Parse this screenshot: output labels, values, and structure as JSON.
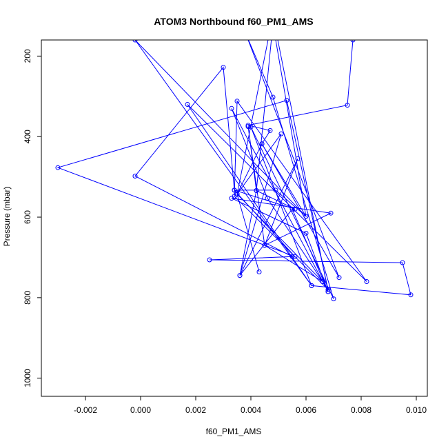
{
  "chart_data": {
    "type": "line",
    "title": "ATOM3 Northbound f60_PM1_AMS",
    "xlabel": "f60_PM1_AMS",
    "ylabel": "Pressure (mbar)",
    "xlim": [
      -0.0036,
      0.0104
    ],
    "ylim": [
      1045,
      160
    ],
    "y_reversed": true,
    "xticks": [
      -0.002,
      0.0,
      0.002,
      0.004,
      0.006,
      0.008,
      0.01
    ],
    "xtick_labels": [
      "-0.002",
      "0.000",
      "0.002",
      "0.004",
      "0.006",
      "0.008",
      "0.010"
    ],
    "yticks": [
      200,
      400,
      600,
      800,
      1000
    ],
    "ytick_labels": [
      "200",
      "400",
      "600",
      "800",
      "1000"
    ],
    "color": "#0000ff",
    "series": [
      {
        "points": [
          [
            0.0077,
            160
          ],
          [
            0.0075,
            322
          ],
          [
            0.0039,
            372
          ],
          [
            0.0047,
            385
          ],
          [
            0.0044,
            418
          ],
          [
            0.0072,
            750
          ],
          [
            0.0038,
            142
          ],
          [
            0.0048,
            302
          ],
          [
            0.007,
            803
          ],
          [
            0.004,
            376
          ],
          [
            0.0062,
            770
          ],
          [
            0.0017,
            320
          ],
          [
            0.0082,
            760
          ],
          [
            0.0035,
            312
          ],
          [
            0.0034,
            548
          ],
          [
            0.0068,
            780
          ],
          [
            0.0053,
            310
          ],
          [
            -0.003,
            477
          ],
          [
            0.0056,
            698
          ],
          [
            0.0034,
            533
          ],
          [
            0.0056,
            580
          ],
          [
            0.0042,
            534
          ],
          [
            0.0036,
            745
          ],
          [
            0.0057,
            455
          ],
          [
            0.0045,
            670
          ],
          [
            0.0069,
            590
          ],
          [
            0.0033,
            553
          ],
          [
            0.006,
            640
          ],
          [
            0.0068,
            785
          ],
          [
            0.0033,
            330
          ],
          [
            0.0046,
            553
          ],
          [
            0.0066,
            760
          ],
          [
            0.0035,
            543
          ],
          [
            0.0043,
            736
          ],
          [
            0.0035,
            543
          ],
          [
            0.0051,
            393
          ],
          [
            0.0036,
            745
          ],
          [
            0.0055,
            580
          ],
          [
            0.0068,
            785
          ],
          [
            0.0048,
            100
          ],
          [
            0.0035,
            543
          ],
          [
            0.0044,
            418
          ],
          [
            0.006,
            598
          ],
          [
            0.0049,
            533
          ],
          [
            0.0034,
            533
          ],
          [
            0.003,
            228
          ],
          [
            -0.0002,
            498
          ],
          [
            0.0055,
            698
          ],
          [
            0.0025,
            706
          ],
          [
            0.0095,
            713
          ],
          [
            0.0098,
            793
          ],
          [
            0.0062,
            770
          ],
          [
            -0.0002,
            160
          ],
          [
            0.006,
            598
          ],
          [
            0.0048,
            120
          ],
          [
            0.0042,
            534
          ],
          [
            0.0039,
            375
          ],
          [
            0.0045,
            670
          ],
          [
            0.0066,
            760
          ]
        ]
      }
    ]
  }
}
